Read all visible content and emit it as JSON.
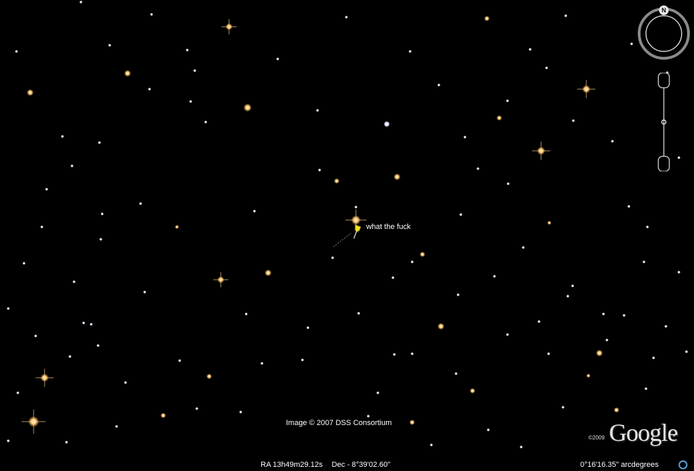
{
  "placemark": {
    "label": "what the fuck",
    "color": "#f2e21a"
  },
  "attribution": {
    "imagery": "Image © 2007 DSS Consortium"
  },
  "branding": {
    "copyright_year": "©2009",
    "logo_text": "Google"
  },
  "status_bar": {
    "ra": "RA  13h49m29.12s",
    "dec": "Dec - 8°39'02.60\"",
    "scale": "0°16'16.35\" arcdegrees"
  },
  "navigation": {
    "north_label": "N"
  },
  "colors": {
    "sky": "#000000",
    "star_warm": "#ffcf7a",
    "star_white": "#ffffff"
  }
}
